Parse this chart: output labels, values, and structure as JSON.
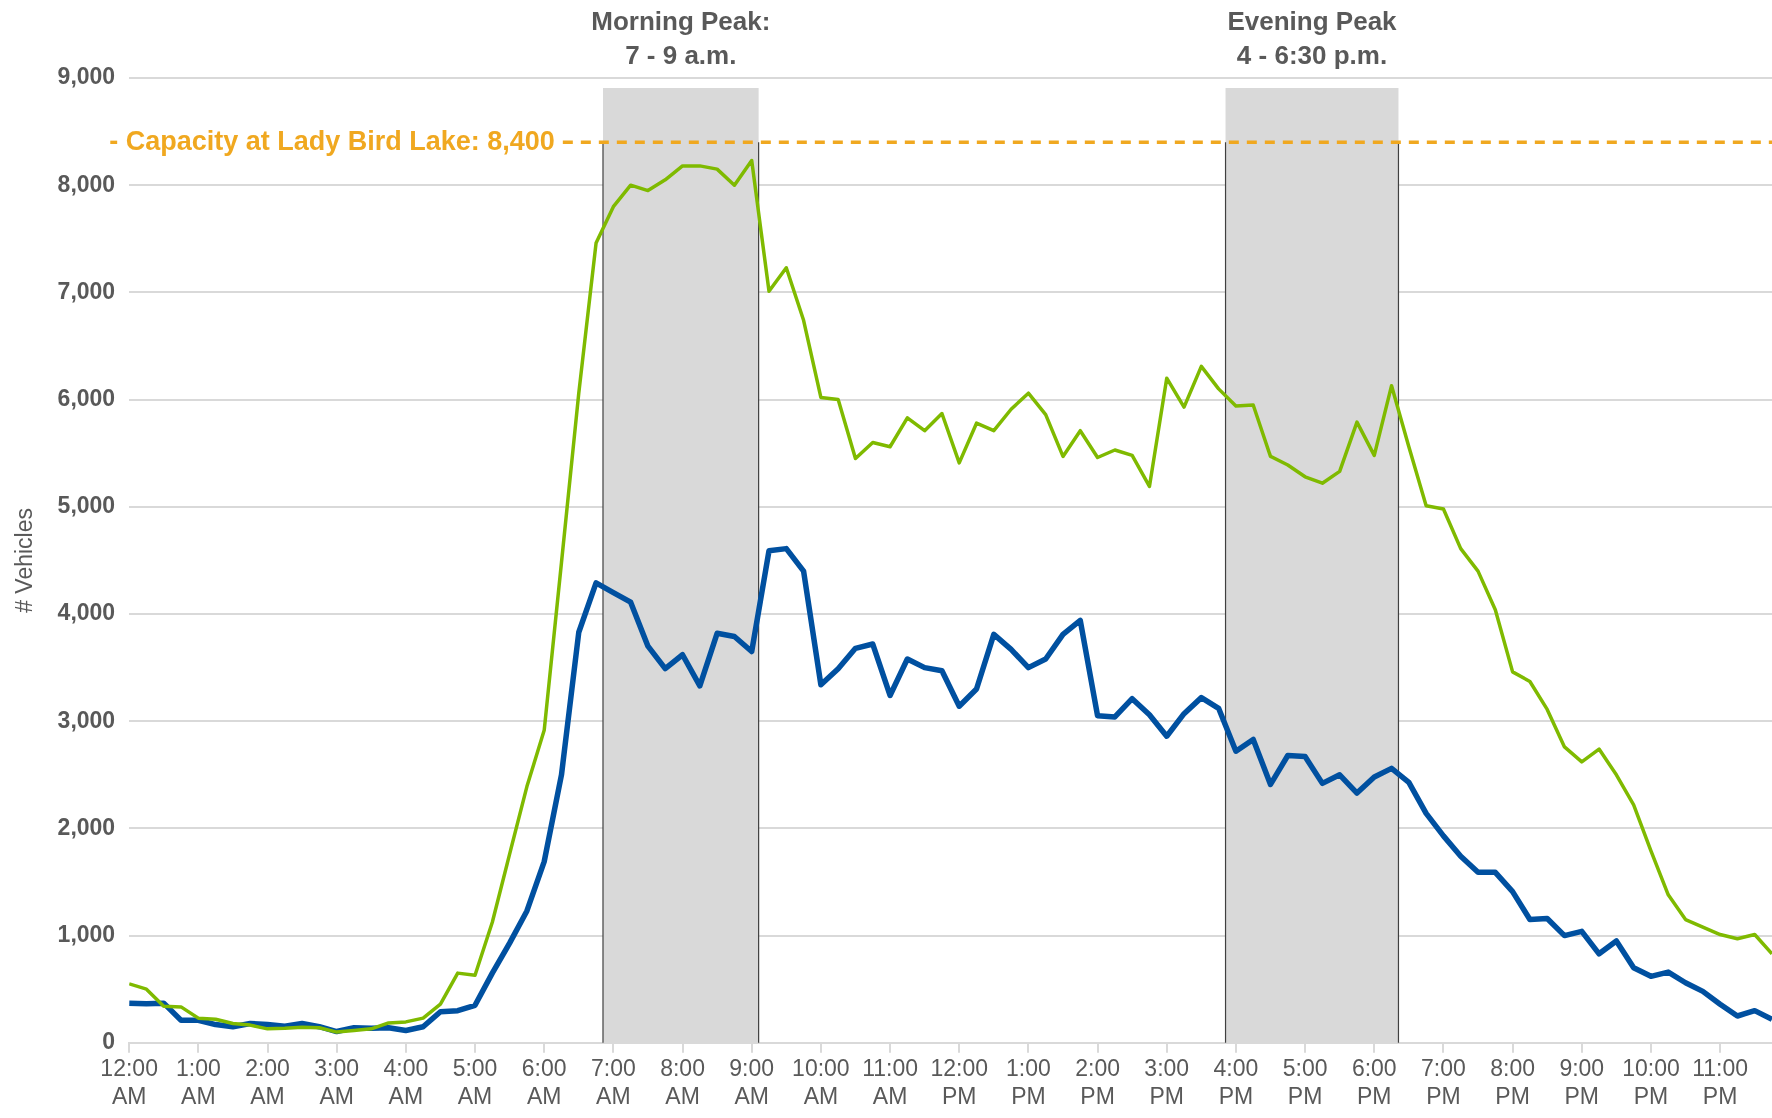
{
  "chart_data": {
    "type": "line",
    "ylabel": "# Vehicles",
    "x": [
      0,
      0.25,
      0.5,
      0.75,
      1,
      1.25,
      1.5,
      1.75,
      2,
      2.25,
      2.5,
      2.75,
      3,
      3.25,
      3.5,
      3.75,
      4,
      4.25,
      4.5,
      4.75,
      5,
      5.25,
      5.5,
      5.75,
      6,
      6.25,
      6.5,
      6.75,
      7,
      7.25,
      7.5,
      7.75,
      8,
      8.25,
      8.5,
      8.75,
      9,
      9.25,
      9.5,
      9.75,
      10,
      10.25,
      10.5,
      10.75,
      11,
      11.25,
      11.5,
      11.75,
      12,
      12.25,
      12.5,
      12.75,
      13,
      13.25,
      13.5,
      13.75,
      14,
      14.25,
      14.5,
      14.75,
      15,
      15.25,
      15.5,
      15.75,
      16,
      16.25,
      16.5,
      16.75,
      17,
      17.25,
      17.5,
      17.75,
      18,
      18.25,
      18.5,
      18.75,
      19,
      19.25,
      19.5,
      19.75,
      20,
      20.25,
      20.5,
      20.75,
      21,
      21.25,
      21.5,
      21.75,
      22,
      22.25,
      22.5,
      22.75,
      23,
      23.25,
      23.5,
      23.75
    ],
    "series": [
      {
        "color": "#7fba00",
        "values": [
          550,
          500,
          340,
          335,
          230,
          220,
          180,
          165,
          130,
          135,
          145,
          140,
          100,
          115,
          130,
          185,
          195,
          230,
          360,
          650,
          630,
          1125,
          1760,
          2390,
          2915,
          4480,
          6060,
          7460,
          7800,
          8000,
          7950,
          8050,
          8180,
          8180,
          8150,
          8000,
          8230,
          7010,
          7230,
          6740,
          6020,
          6000,
          5450,
          5600,
          5560,
          5830,
          5710,
          5870,
          5410,
          5780,
          5710,
          5910,
          6060,
          5860,
          5470,
          5710,
          5460,
          5530,
          5480,
          5190,
          6200,
          5930,
          6310,
          6100,
          5940,
          5950,
          5470,
          5390,
          5280,
          5220,
          5330,
          5790,
          5480,
          6130,
          5560,
          5010,
          4980,
          4610,
          4400,
          4040,
          3460,
          3370,
          3110,
          2760,
          2620,
          2740,
          2500,
          2220,
          1790,
          1380,
          1150,
          1080,
          1010,
          970,
          1010,
          830
        ]
      },
      {
        "color": "#0050a0",
        "values": [
          370,
          365,
          370,
          210,
          210,
          170,
          150,
          180,
          170,
          155,
          180,
          150,
          105,
          140,
          135,
          140,
          115,
          150,
          290,
          300,
          350,
          650,
          930,
          1230,
          1690,
          2500,
          3830,
          4290,
          4200,
          4110,
          3700,
          3490,
          3620,
          3330,
          3820,
          3790,
          3650,
          4590,
          4610,
          4400,
          3340,
          3490,
          3680,
          3720,
          3240,
          3580,
          3500,
          3470,
          3140,
          3300,
          3810,
          3670,
          3500,
          3580,
          3810,
          3940,
          3050,
          3040,
          3210,
          3060,
          2860,
          3070,
          3220,
          3120,
          2720,
          2830,
          2410,
          2680,
          2670,
          2420,
          2500,
          2330,
          2480,
          2560,
          2430,
          2140,
          1930,
          1740,
          1590,
          1590,
          1410,
          1150,
          1160,
          1000,
          1040,
          830,
          950,
          700,
          620,
          660,
          560,
          480,
          360,
          250,
          300,
          220
        ]
      }
    ],
    "xlim": [
      0,
      23.75
    ],
    "xticks": [
      {
        "value": 0,
        "label": "12:00 AM"
      },
      {
        "value": 1,
        "label": "1:00 AM"
      },
      {
        "value": 2,
        "label": "2:00 AM"
      },
      {
        "value": 3,
        "label": "3:00 AM"
      },
      {
        "value": 4,
        "label": "4:00 AM"
      },
      {
        "value": 5,
        "label": "5:00 AM"
      },
      {
        "value": 6,
        "label": "6:00 AM"
      },
      {
        "value": 7,
        "label": "7:00 AM"
      },
      {
        "value": 8,
        "label": "8:00 AM"
      },
      {
        "value": 9,
        "label": "9:00 AM"
      },
      {
        "value": 10,
        "label": "10:00 AM"
      },
      {
        "value": 11,
        "label": "11:00 AM"
      },
      {
        "value": 12,
        "label": "12:00 PM"
      },
      {
        "value": 13,
        "label": "1:00 PM"
      },
      {
        "value": 14,
        "label": "2:00 PM"
      },
      {
        "value": 15,
        "label": "3:00 PM"
      },
      {
        "value": 16,
        "label": "4:00 PM"
      },
      {
        "value": 17,
        "label": "5:00 PM"
      },
      {
        "value": 18,
        "label": "6:00 PM"
      },
      {
        "value": 19,
        "label": "7:00 PM"
      },
      {
        "value": 20,
        "label": "8:00 PM"
      },
      {
        "value": 21,
        "label": "9:00 PM"
      },
      {
        "value": 22,
        "label": "10:00 PM"
      },
      {
        "value": 23,
        "label": "11:00 PM"
      }
    ],
    "ylim": [
      0,
      9000
    ],
    "yticks": [
      0,
      {
        "value": 1000,
        "label": "1,000"
      },
      {
        "value": 2000,
        "label": "2,000"
      },
      {
        "value": 3000,
        "label": "3,000"
      },
      {
        "value": 4000,
        "label": "4,000"
      },
      {
        "value": 5000,
        "label": "5,000"
      },
      {
        "value": 6000,
        "label": "6,000"
      },
      {
        "value": 7000,
        "label": "7,000"
      },
      {
        "value": 8000,
        "label": "8,000"
      },
      {
        "value": 9000,
        "label": "9,000"
      }
    ],
    "grid": "y",
    "marker": "none",
    "line_style": "solid",
    "ref_lines": [
      {
        "axis": "y",
        "value": 8400,
        "label": "- Capacity at Lady Bird Lake: 8,400",
        "color": "#f0a820",
        "line_style": "dashed"
      }
    ],
    "bands": [
      {
        "axis": "x",
        "from": 6.85,
        "to": 9.1,
        "label": "Morning Peak:\n7 - 9 a.m.",
        "color": "#d9d9d9"
      },
      {
        "axis": "x",
        "from": 15.85,
        "to": 18.35,
        "label": "Evening Peak\n4 - 6:30 p.m.",
        "color": "#d9d9d9"
      }
    ]
  }
}
